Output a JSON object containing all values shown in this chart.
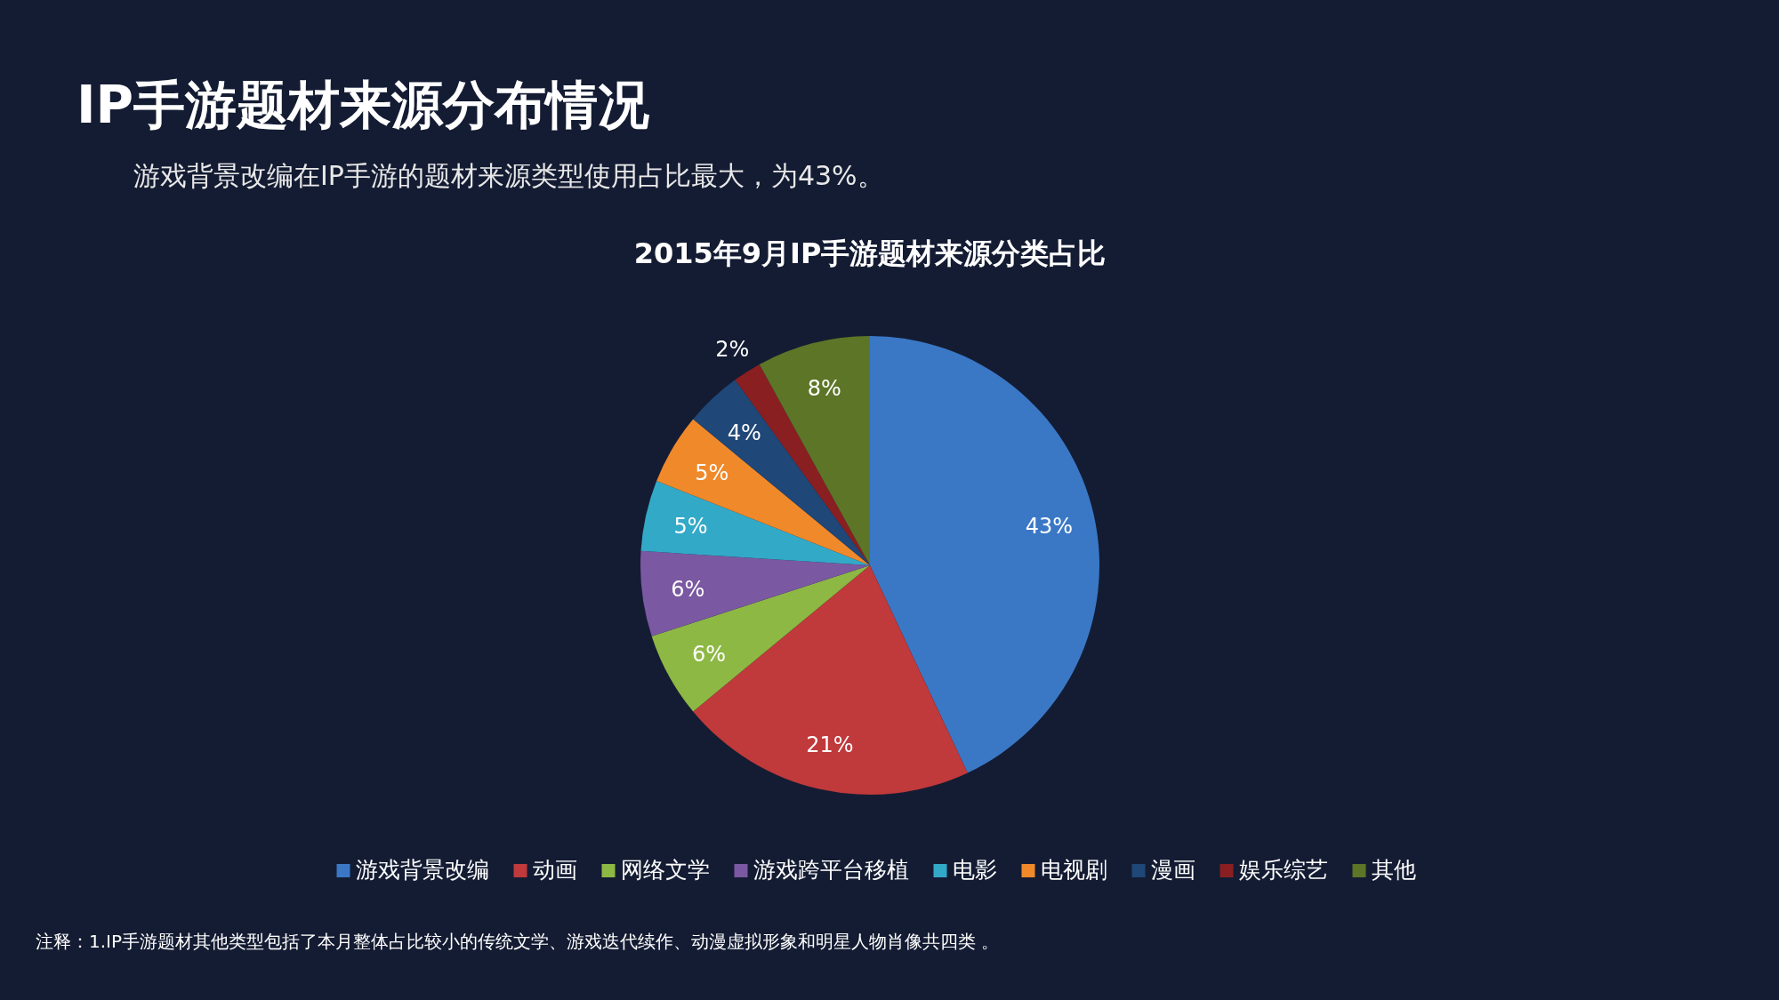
{
  "chart_data": {
    "type": "pie",
    "title": "IP手游题材来源分布情况",
    "subtitle": "游戏背景改编在IP手游的题材来源类型使用占比最大，为43%。",
    "categories": [
      "游戏背景改编",
      "动画",
      "网络文学",
      "游戏跨平台移植",
      "电影",
      "电视剧",
      "漫画",
      "娱乐综艺",
      "其他"
    ],
    "values": [
      43,
      21,
      6,
      6,
      5,
      5,
      4,
      2,
      8
    ],
    "value_labels": [
      "43%",
      "21%",
      "6%",
      "6%",
      "5%",
      "5%",
      "4%",
      "2%",
      "8%"
    ],
    "colors": [
      "#3a78c6",
      "#c0393b",
      "#8db843",
      "#7b58a2",
      "#33a9c8",
      "#f0892a",
      "#1f4777",
      "#8a1f22",
      "#5c7527"
    ],
    "legend": "bottom",
    "annotations": [
      "2015年9月IP手游题材来源分类占比",
      "注释：1.IP手游题材其他类型包括了本月整体占比较小的传统文学、游戏迭代续作、动漫虚拟形象和明星人物肖像共四类 。"
    ]
  }
}
